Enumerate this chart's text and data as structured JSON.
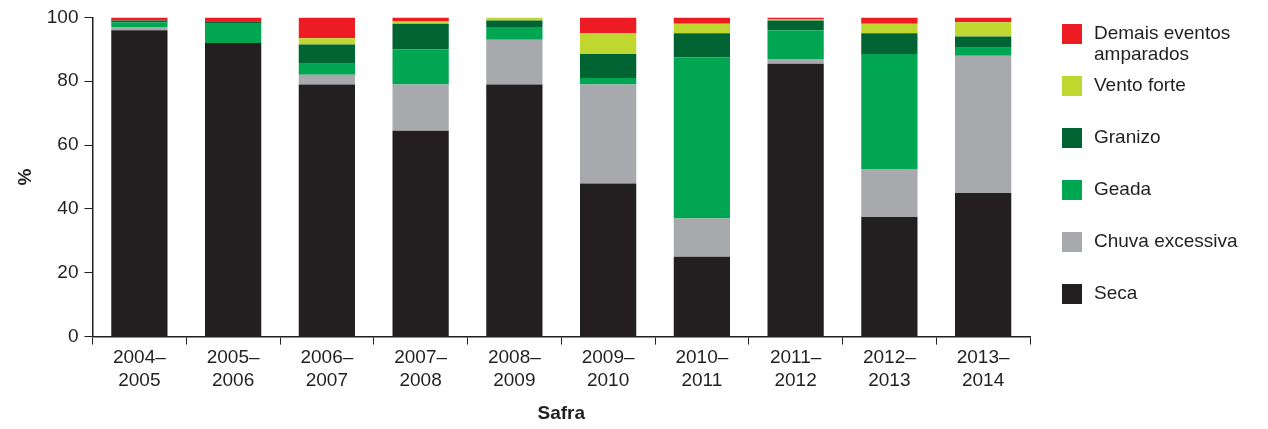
{
  "chart_data": {
    "type": "bar",
    "stacked": true,
    "xlabel": "Safra",
    "ylabel": "%",
    "legend": "right",
    "grid": false,
    "categories": [
      "2004–2005",
      "2005–2006",
      "2006–2007",
      "2007–2008",
      "2008–2009",
      "2009–2010",
      "2010–2011",
      "2011–2012",
      "2012–2013",
      "2013–2014"
    ],
    "ylim": [
      0,
      100
    ],
    "yticks": [
      0,
      20,
      40,
      60,
      80,
      100
    ],
    "series": [
      {
        "name": "Seca",
        "color": "#231f20",
        "values": [
          96,
          92,
          79,
          64.5,
          79,
          48,
          25,
          85.5,
          37.5,
          45
        ]
      },
      {
        "name": "Chuva excessiva",
        "color": "#a7a9ac",
        "values": [
          1,
          null,
          3,
          14.5,
          14,
          31,
          12,
          1.5,
          15,
          43
        ]
      },
      {
        "name": "Geada",
        "color": "#00a651",
        "values": [
          1.5,
          6,
          3.5,
          11,
          4,
          2,
          50.5,
          9,
          36,
          2.5
        ]
      },
      {
        "name": "Granizo",
        "color": "#006432",
        "values": [
          0.5,
          0.8,
          6,
          8,
          2,
          7.5,
          7.5,
          3,
          6.5,
          3.5
        ]
      },
      {
        "name": "Vento forte",
        "color": "#c0d72f",
        "values": [
          0,
          0,
          2,
          0.7,
          1,
          6.5,
          3,
          0.5,
          3,
          4.5
        ]
      },
      {
        "name": "Demais eventos amparados",
        "color": "#ed1c24",
        "values": [
          1,
          1.2,
          6.5,
          1.3,
          0,
          5,
          2,
          0.5,
          2,
          1.5
        ]
      }
    ]
  }
}
